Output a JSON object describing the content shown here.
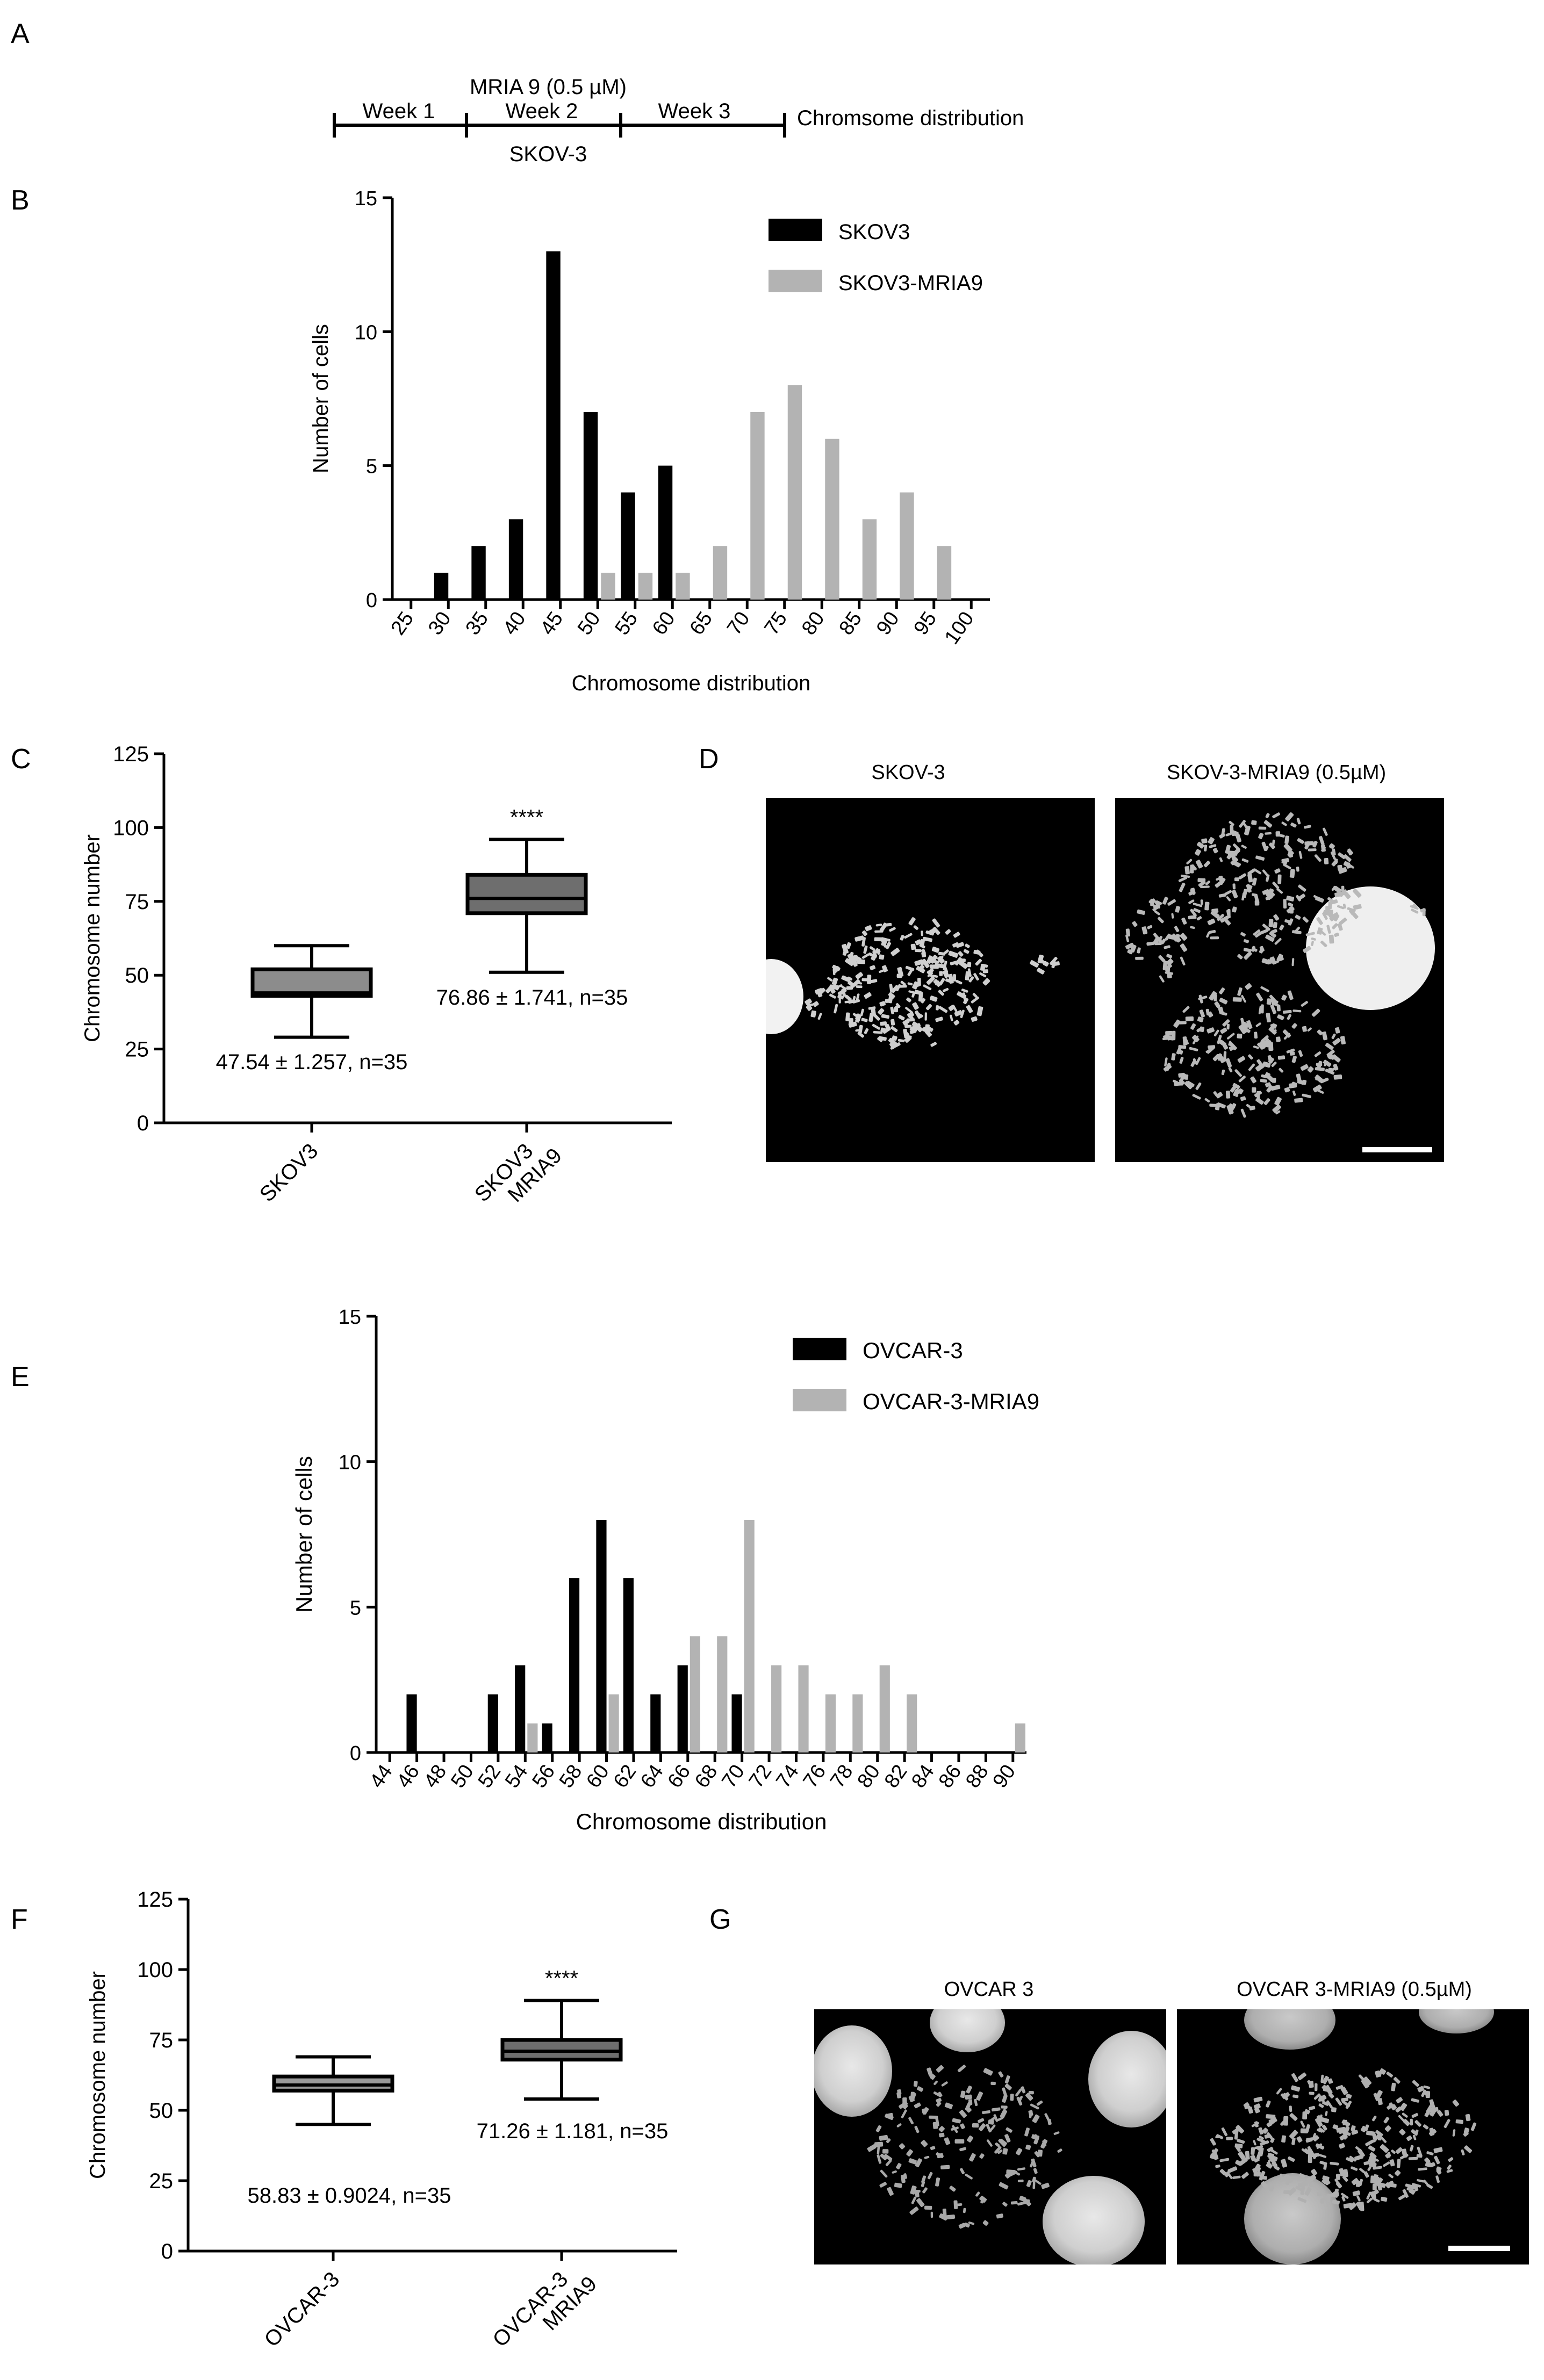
{
  "panel_letters": [
    "A",
    "B",
    "C",
    "D",
    "E",
    "F",
    "G"
  ],
  "timeline": {
    "treatment": "MRIA 9 (0.5 µM)",
    "weeks": [
      "Week 1",
      "Week 2",
      "Week 3"
    ],
    "cell_line": "SKOV-3",
    "endpoint": "Chromsome distribution"
  },
  "colors": {
    "parental": "#000000",
    "treated": "#b3b3b3",
    "box_fill_c": "#8c8c8c",
    "box_fill_c2": "#6e6e6e",
    "box_fill_f": "#9a9a9a"
  },
  "chart_data": [
    {
      "id": "B",
      "type": "bar",
      "xlabel": "Chromosome distribution",
      "ylabel": "Number of cells",
      "ylim": [
        0,
        15
      ],
      "yticks": [
        0,
        5,
        10,
        15
      ],
      "categories": [
        "25",
        "30",
        "35",
        "40",
        "45",
        "50",
        "55",
        "60",
        "65",
        "70",
        "75",
        "80",
        "85",
        "90",
        "95",
        "100"
      ],
      "series": [
        {
          "name": "SKOV3",
          "values": [
            0,
            1,
            2,
            3,
            13,
            7,
            4,
            5,
            0,
            0,
            0,
            0,
            0,
            0,
            0,
            0
          ]
        },
        {
          "name": "SKOV3-MRIA9",
          "values": [
            0,
            0,
            0,
            0,
            0,
            1,
            1,
            1,
            2,
            7,
            8,
            6,
            3,
            4,
            2,
            0
          ]
        }
      ],
      "legend_position": "top-right"
    },
    {
      "id": "C",
      "type": "box",
      "ylabel": "Chromosome number",
      "ylim": [
        0,
        125
      ],
      "yticks": [
        0,
        25,
        50,
        75,
        100,
        125
      ],
      "groups": [
        {
          "label": "SKOV3",
          "min": 29,
          "q1": 43,
          "median": 44,
          "q3": 52,
          "max": 60,
          "annotation": "47.54 ± 1.257, n=35",
          "significance": ""
        },
        {
          "label": "SKOV3 MRIA9",
          "min": 51,
          "q1": 71,
          "median": 76,
          "q3": 84,
          "max": 96,
          "annotation": "76.86 ± 1.741, n=35",
          "significance": "****"
        }
      ]
    },
    {
      "id": "E",
      "type": "bar",
      "xlabel": "Chromosome distribution",
      "ylabel": "Number of cells",
      "ylim": [
        0,
        15
      ],
      "yticks": [
        0,
        5,
        10,
        15
      ],
      "categories": [
        "44",
        "46",
        "48",
        "50",
        "52",
        "54",
        "56",
        "58",
        "60",
        "62",
        "64",
        "66",
        "68",
        "70",
        "72",
        "74",
        "76",
        "78",
        "80",
        "82",
        "84",
        "86",
        "88",
        "90"
      ],
      "series": [
        {
          "name": "OVCAR-3",
          "values": [
            0,
            2,
            0,
            0,
            2,
            3,
            1,
            6,
            8,
            6,
            2,
            3,
            0,
            2,
            0,
            0,
            0,
            0,
            0,
            0,
            0,
            0,
            0,
            0
          ]
        },
        {
          "name": "OVCAR-3-MRIA9",
          "values": [
            0,
            0,
            0,
            0,
            0,
            1,
            0,
            0,
            2,
            0,
            0,
            4,
            4,
            8,
            3,
            3,
            2,
            2,
            3,
            2,
            0,
            0,
            0,
            1
          ]
        }
      ],
      "legend_position": "top-right"
    },
    {
      "id": "F",
      "type": "box",
      "ylabel": "Chromosome number",
      "ylim": [
        0,
        125
      ],
      "yticks": [
        0,
        25,
        50,
        75,
        100,
        125
      ],
      "groups": [
        {
          "label": "OVCAR-3",
          "min": 45,
          "q1": 57,
          "median": 59,
          "q3": 62,
          "max": 69,
          "annotation": "58.83 ± 0.9024, n=35",
          "significance": ""
        },
        {
          "label": "OVCAR-3 MRIA9",
          "min": 54,
          "q1": 68,
          "median": 71,
          "q3": 75,
          "max": 89,
          "annotation": "71.26 ± 1.181, n=35",
          "significance": "****"
        }
      ]
    }
  ],
  "micrographs_d": {
    "left_title": "SKOV-3",
    "right_title": "SKOV-3-MRIA9 (0.5µM)"
  },
  "micrographs_g": {
    "left_title": "OVCAR 3",
    "right_title": "OVCAR 3-MRIA9 (0.5µM)"
  }
}
